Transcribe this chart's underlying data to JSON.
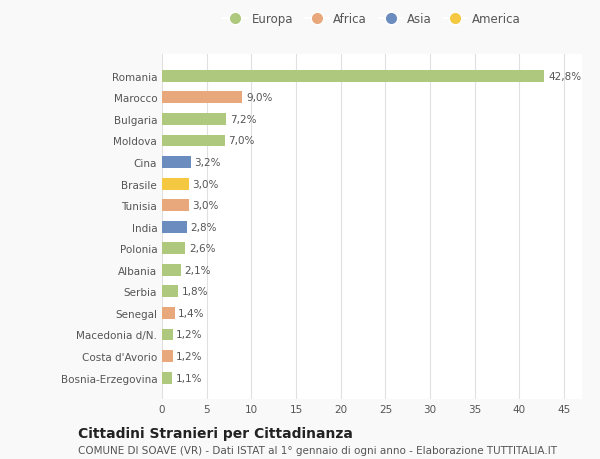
{
  "categories": [
    "Romania",
    "Marocco",
    "Bulgaria",
    "Moldova",
    "Cina",
    "Brasile",
    "Tunisia",
    "India",
    "Polonia",
    "Albania",
    "Serbia",
    "Senegal",
    "Macedonia d/N.",
    "Costa d'Avorio",
    "Bosnia-Erzegovina"
  ],
  "values": [
    42.8,
    9.0,
    7.2,
    7.0,
    3.2,
    3.0,
    3.0,
    2.8,
    2.6,
    2.1,
    1.8,
    1.4,
    1.2,
    1.2,
    1.1
  ],
  "labels": [
    "42,8%",
    "9,0%",
    "7,2%",
    "7,0%",
    "3,2%",
    "3,0%",
    "3,0%",
    "2,8%",
    "2,6%",
    "2,1%",
    "1,8%",
    "1,4%",
    "1,2%",
    "1,2%",
    "1,1%"
  ],
  "continents": [
    "Europa",
    "Africa",
    "Europa",
    "Europa",
    "Asia",
    "America",
    "Africa",
    "Asia",
    "Europa",
    "Europa",
    "Europa",
    "Africa",
    "Europa",
    "Africa",
    "Europa"
  ],
  "continent_colors": {
    "Europa": "#aec97e",
    "Africa": "#e8a87c",
    "Asia": "#6b8cbf",
    "America": "#f5c842"
  },
  "title": "Cittadini Stranieri per Cittadinanza",
  "subtitle": "COMUNE DI SOAVE (VR) - Dati ISTAT al 1° gennaio di ogni anno - Elaborazione TUTTITALIA.IT",
  "xlim": [
    0,
    47
  ],
  "xticks": [
    0,
    5,
    10,
    15,
    20,
    25,
    30,
    35,
    40,
    45
  ],
  "background_color": "#f9f9f9",
  "bar_background": "#ffffff",
  "grid_color": "#e0e0e0",
  "text_color": "#555555",
  "title_fontsize": 10,
  "subtitle_fontsize": 7.5,
  "label_fontsize": 7.5,
  "tick_fontsize": 7.5,
  "legend_fontsize": 8.5
}
